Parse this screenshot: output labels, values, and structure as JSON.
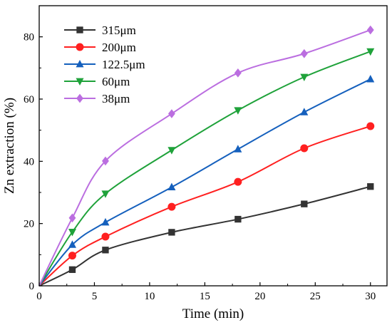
{
  "chart_data": {
    "type": "line",
    "xlabel": "Time (min)",
    "ylabel": "Zn extraction (%)",
    "xlim": [
      0,
      31.5
    ],
    "ylim": [
      0,
      90
    ],
    "xticks": [
      0,
      5,
      10,
      15,
      20,
      25,
      30
    ],
    "yticks": [
      0,
      20,
      40,
      60,
      80
    ],
    "grid": false,
    "legend_position": "top-left",
    "x": [
      0,
      3,
      6,
      12,
      18,
      24,
      30
    ],
    "series": [
      {
        "name": "315μm",
        "marker": "square",
        "color": "#333333",
        "values": [
          0,
          5.2,
          11.5,
          17.2,
          21.4,
          26.3,
          31.9
        ]
      },
      {
        "name": "200μm",
        "marker": "circle",
        "color": "#ff2020",
        "values": [
          0,
          9.7,
          15.8,
          25.4,
          33.4,
          44.2,
          51.3
        ]
      },
      {
        "name": "122.5μm",
        "marker": "triangle-up",
        "color": "#1560bd",
        "values": [
          0,
          13.2,
          20.4,
          31.7,
          43.9,
          55.8,
          66.4
        ]
      },
      {
        "name": "60μm",
        "marker": "triangle-down",
        "color": "#1fa23a",
        "values": [
          0,
          17.3,
          29.6,
          43.6,
          56.4,
          67.1,
          75.3
        ]
      },
      {
        "name": "38μm",
        "marker": "diamond",
        "color": "#bb6ee0",
        "values": [
          0,
          21.8,
          40.1,
          55.3,
          68.4,
          74.6,
          82.2
        ]
      }
    ]
  }
}
